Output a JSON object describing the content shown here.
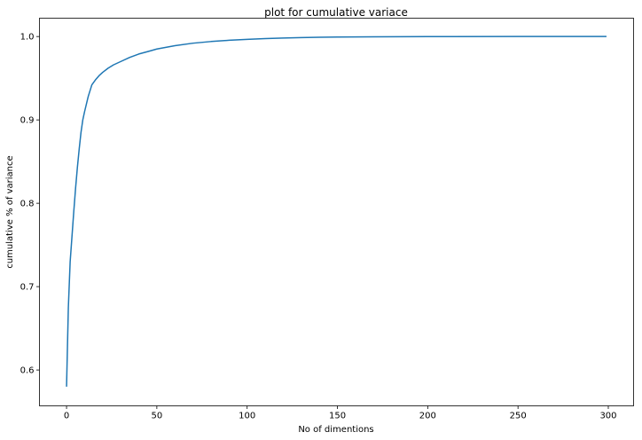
{
  "chart_data": {
    "type": "line",
    "title": "plot for cumulative variace",
    "xlabel": "No of dimentions",
    "ylabel": "cumulative % of variance",
    "xlim": [
      -15,
      314
    ],
    "ylim": [
      0.557,
      1.022
    ],
    "xticks": [
      0,
      50,
      100,
      150,
      200,
      250,
      300
    ],
    "xtick_labels": [
      "0",
      "50",
      "100",
      "150",
      "200",
      "250",
      "300"
    ],
    "yticks": [
      0.6,
      0.7,
      0.8,
      0.9,
      1.0
    ],
    "ytick_labels": [
      "0.6",
      "0.7",
      "0.8",
      "0.9",
      "1.0"
    ],
    "grid": false,
    "series": [
      {
        "color": "#1f77b4",
        "x": [
          0,
          1,
          2,
          3,
          4,
          5,
          6,
          7,
          8,
          9,
          10,
          12,
          14,
          16,
          18,
          20,
          23,
          26,
          30,
          35,
          40,
          45,
          50,
          60,
          70,
          80,
          90,
          100,
          110,
          120,
          130,
          140,
          150,
          170,
          200,
          250,
          299
        ],
        "y": [
          0.58,
          0.675,
          0.73,
          0.76,
          0.79,
          0.818,
          0.843,
          0.865,
          0.885,
          0.9,
          0.91,
          0.928,
          0.942,
          0.948,
          0.953,
          0.957,
          0.962,
          0.966,
          0.97,
          0.975,
          0.979,
          0.982,
          0.985,
          0.989,
          0.992,
          0.994,
          0.9955,
          0.9966,
          0.9975,
          0.9982,
          0.9987,
          0.9991,
          0.9994,
          0.9997,
          0.9999,
          1.0,
          1.0
        ]
      }
    ]
  }
}
